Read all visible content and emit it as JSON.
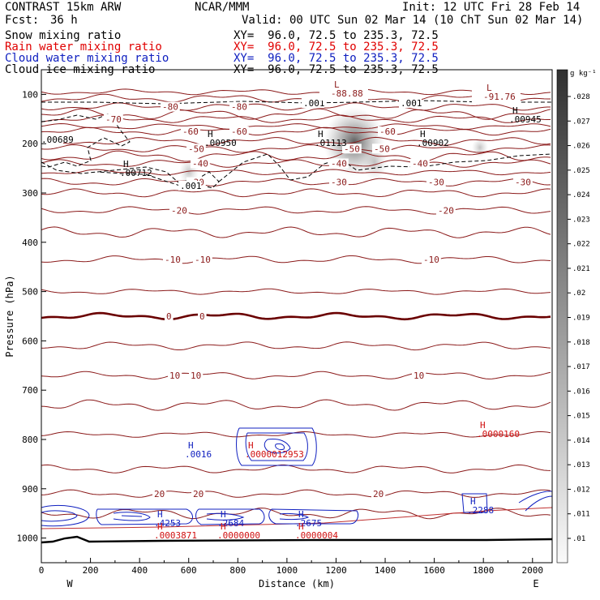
{
  "header": {
    "model": "CONTRAST 15km ARW",
    "center": "NCAR/MMM",
    "init": "Init: 12 UTC Fri 28 Feb 14",
    "fcst_label": "Fcst:",
    "fcst_value": "36 h",
    "valid": "Valid: 00 UTC Sun 02 Mar 14 (10 ChT Sun 02 Mar 14)"
  },
  "fields": [
    {
      "name": "Snow mixing ratio",
      "xy": "XY=  96.0, 72.5 to 235.3, 72.5",
      "color": "#000000"
    },
    {
      "name": "Rain water mixing ratio",
      "xy": "XY=  96.0, 72.5 to 235.3, 72.5",
      "color": "#e00000"
    },
    {
      "name": "Cloud water mixing ratio",
      "xy": "XY=  96.0, 72.5 to 235.3, 72.5",
      "color": "#1020c0"
    },
    {
      "name": "Cloud ice mixing ratio",
      "xy": "XY=  96.0, 72.5 to 235.3, 72.5",
      "color": "#000000"
    }
  ],
  "chart_data": {
    "type": "cross-section",
    "xlabel": "Distance (km)",
    "ylabel": "Pressure (hPa)",
    "xlim": [
      0,
      2080
    ],
    "ylim": [
      1050,
      50
    ],
    "x_ticks": [
      "0",
      "200",
      "400",
      "600",
      "800",
      "1000",
      "1200",
      "1400",
      "1600",
      "1800",
      "2000"
    ],
    "y_ticks": [
      "100",
      "200",
      "300",
      "400",
      "500",
      "600",
      "700",
      "800",
      "900",
      "1000"
    ],
    "west_label": "W",
    "east_label": "E",
    "colorbar": {
      "unit": "g kg⁻¹",
      "ticks": [
        ".01",
        ".011",
        ".012",
        ".013",
        ".014",
        ".015",
        ".016",
        ".017",
        ".018",
        ".019",
        ".02",
        ".021",
        ".022",
        ".023",
        ".024",
        ".025",
        ".026",
        ".027",
        ".028"
      ]
    },
    "isotherms": [
      {
        "temp": -80,
        "pressure": 125,
        "labels": [
          "-80",
          "-80"
        ]
      },
      {
        "temp": -70,
        "pressure": 150,
        "labels": [
          "-70"
        ]
      },
      {
        "temp": -60,
        "pressure": 175,
        "labels": [
          "-60",
          "-60",
          "-60"
        ]
      },
      {
        "temp": -50,
        "pressure": 210,
        "labels": [
          "-50",
          "-50",
          "-50"
        ]
      },
      {
        "temp": -40,
        "pressure": 240,
        "labels": [
          "-40",
          "-40",
          "-40"
        ]
      },
      {
        "temp": -30,
        "pressure": 278,
        "labels": [
          "-30",
          "-30",
          "-30",
          "-30"
        ]
      },
      {
        "temp": -20,
        "pressure": 335,
        "labels": [
          "-20",
          "-20"
        ]
      },
      {
        "temp": -10,
        "pressure": 435,
        "labels": [
          "-10",
          "-10",
          "-10"
        ]
      },
      {
        "temp": 0,
        "pressure": 550,
        "labels": [
          "0",
          "0"
        ]
      },
      {
        "temp": 10,
        "pressure": 670,
        "labels": [
          "10",
          "10",
          "10"
        ]
      },
      {
        "temp": 20,
        "pressure": 910,
        "labels": [
          "20",
          "20",
          "20"
        ]
      }
    ],
    "centers": [
      {
        "type": "L",
        "value": "-88.88",
        "x_km": 1200,
        "p": 118,
        "field": "temperature"
      },
      {
        "type": "L",
        "value": "-91.76",
        "x_km": 1870,
        "p": 105,
        "field": "temperature"
      },
      {
        "type": "H",
        "value": ".01113",
        "x_km": 1140,
        "p": 178,
        "field": "snow"
      },
      {
        "type": "H",
        "value": ".00902",
        "x_km": 1530,
        "p": 178,
        "field": "snow"
      },
      {
        "type": "H",
        "value": ".00950",
        "x_km": 640,
        "p": 178,
        "field": "snow"
      },
      {
        "type": "H",
        "value": ".00712",
        "x_km": 330,
        "p": 232,
        "field": "snow"
      },
      {
        "type": "H",
        "value": ".00945",
        "x_km": 1970,
        "p": 138,
        "field": "snow"
      },
      {
        "type": "H",
        "value": ".0016",
        "x_km": 600,
        "p": 815,
        "field": "cloud water"
      },
      {
        "type": "H",
        "value": ".0000012953",
        "x_km": 900,
        "p": 815,
        "field": "rain water"
      },
      {
        "type": "H",
        "value": ".0000160",
        "x_km": 1900,
        "p": 782,
        "field": "rain water"
      },
      {
        "type": "H",
        "value": ".2288",
        "x_km": 1760,
        "p": 955,
        "field": "cloud water"
      },
      {
        "type": "H",
        "value": ".4253",
        "x_km": 480,
        "p": 978,
        "field": "cloud water"
      },
      {
        "type": "H",
        "value": ".2684",
        "x_km": 780,
        "p": 978,
        "field": "cloud water"
      },
      {
        "type": "H",
        "value": ".2675",
        "x_km": 1110,
        "p": 978,
        "field": "cloud water"
      },
      {
        "type": "H",
        "value": ".0003871",
        "x_km": 480,
        "p": 990,
        "field": "rain water"
      },
      {
        "type": "H",
        "value": ".0000000",
        "x_km": 780,
        "p": 990,
        "field": "rain water"
      },
      {
        "type": "H",
        "value": ".0000004",
        "x_km": 1110,
        "p": 990,
        "field": "rain water"
      }
    ],
    "cloud_ice_contour": ".001",
    "edge_value": ".00689"
  }
}
